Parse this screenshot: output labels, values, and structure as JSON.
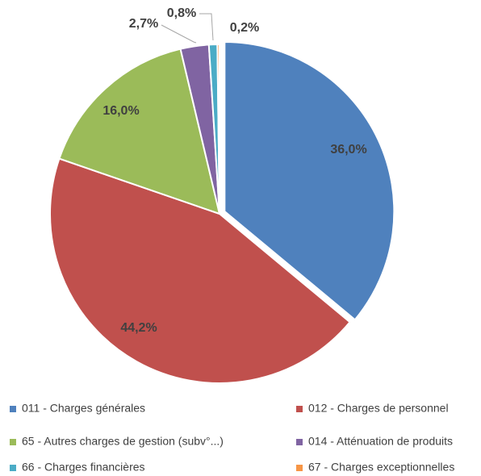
{
  "chart_data": {
    "type": "pie",
    "categories": [
      "011 - Charges générales",
      "012 - Charges de personnel",
      "65 - Autres charges de gestion (subv°...)",
      "014 - Atténuation de produits",
      "66 - Charges financières",
      "67 - Charges exceptionnelles"
    ],
    "values": [
      36.0,
      44.2,
      16.0,
      2.7,
      0.8,
      0.2
    ],
    "value_labels": [
      "36,0%",
      "44,2%",
      "16,0%",
      "2,7%",
      "0,8%",
      "0,2%"
    ],
    "colors": [
      "#4f81bd",
      "#c0504d",
      "#9bbb59",
      "#8064a2",
      "#4bacc6",
      "#f79646"
    ],
    "legend": "bottom"
  }
}
